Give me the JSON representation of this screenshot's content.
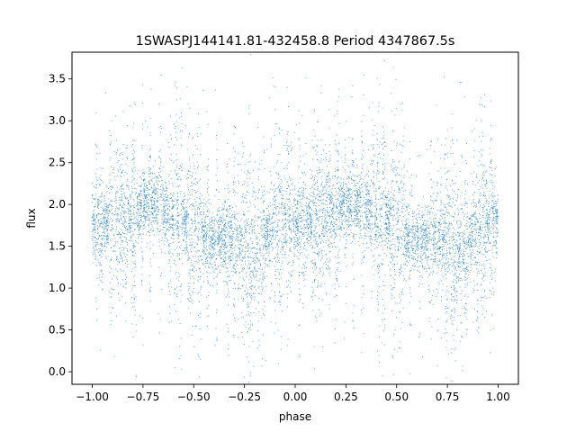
{
  "chart_data": {
    "type": "scatter",
    "title": "1SWASPJ144141.81-432458.8 Period 4347867.5s",
    "xlabel": "phase",
    "ylabel": "flux",
    "xlim": [
      -1.1,
      1.1
    ],
    "ylim": [
      -0.15,
      3.82
    ],
    "xticks": [
      -1.0,
      -0.75,
      -0.5,
      -0.25,
      0.0,
      0.25,
      0.5,
      0.75,
      1.0
    ],
    "xtick_labels": [
      "−1.00",
      "−0.75",
      "−0.50",
      "−0.25",
      "0.00",
      "0.25",
      "0.50",
      "0.75",
      "1.00"
    ],
    "yticks": [
      0.0,
      0.5,
      1.0,
      1.5,
      2.0,
      2.5,
      3.0,
      3.5
    ],
    "ytick_labels": [
      "0.0",
      "0.5",
      "1.0",
      "1.5",
      "2.0",
      "2.5",
      "3.0",
      "3.5"
    ],
    "grid": false,
    "marker_color": "#1f77b4",
    "series": [
      {
        "x_range": [
          -1.0,
          1.0
        ],
        "profile_phase": [
          0.0,
          0.05,
          0.1,
          0.15,
          0.2,
          0.25,
          0.3,
          0.35,
          0.4,
          0.45,
          0.5,
          0.55,
          0.6,
          0.65,
          0.7,
          0.75,
          0.8,
          0.85,
          0.9,
          0.95,
          1.0
        ],
        "profile_flux": [
          1.75,
          1.8,
          1.8,
          1.9,
          1.85,
          2.0,
          2.0,
          1.95,
          1.85,
          1.8,
          1.75,
          1.6,
          1.55,
          1.6,
          1.6,
          1.45,
          1.4,
          1.55,
          1.75,
          1.8,
          1.75
        ]
      }
    ]
  }
}
